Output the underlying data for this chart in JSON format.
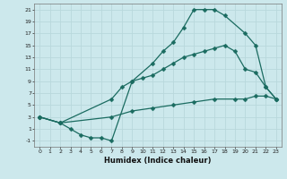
{
  "xlabel": "Humidex (Indice chaleur)",
  "background_color": "#cce8ec",
  "line_color": "#1a6b60",
  "grid_color": "#b8d8dc",
  "xlim": [
    -0.5,
    23.5
  ],
  "ylim": [
    -2,
    22
  ],
  "xticks": [
    0,
    1,
    2,
    3,
    4,
    5,
    6,
    7,
    8,
    9,
    10,
    11,
    12,
    13,
    14,
    15,
    16,
    17,
    18,
    19,
    20,
    21,
    22,
    23
  ],
  "yticks": [
    -1,
    1,
    3,
    5,
    7,
    9,
    11,
    13,
    15,
    17,
    19,
    21
  ],
  "line1_x": [
    0,
    2,
    3,
    4,
    5,
    6,
    7,
    9,
    11,
    12,
    13,
    14,
    15,
    16,
    17,
    18,
    20,
    21,
    22,
    23
  ],
  "line1_y": [
    3,
    2,
    1,
    0,
    -0.5,
    -0.5,
    -1,
    9,
    12,
    14,
    15.5,
    18,
    21,
    21,
    21,
    20,
    17,
    15,
    8,
    6
  ],
  "line2_x": [
    0,
    2,
    7,
    8,
    9,
    10,
    11,
    12,
    13,
    14,
    15,
    16,
    17,
    18,
    19,
    20,
    21,
    22,
    23
  ],
  "line2_y": [
    3,
    2,
    6,
    8,
    9,
    9.5,
    10,
    11,
    12,
    13,
    13.5,
    14,
    14.5,
    15,
    14,
    11,
    10.5,
    8,
    6
  ],
  "line3_x": [
    0,
    2,
    7,
    9,
    11,
    13,
    15,
    17,
    19,
    20,
    21,
    22,
    23
  ],
  "line3_y": [
    3,
    2,
    3,
    4,
    4.5,
    5,
    5.5,
    6,
    6,
    6,
    6.5,
    6.5,
    6
  ]
}
